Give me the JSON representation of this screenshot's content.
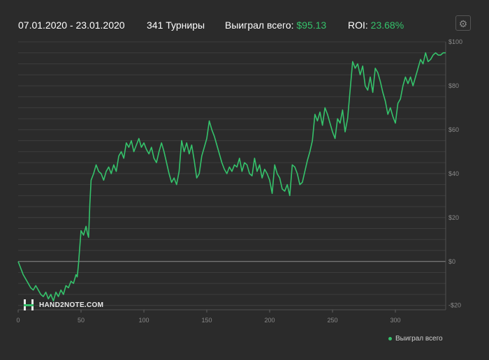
{
  "header": {
    "date_range": "07.01.2020 - 23.01.2020",
    "tournaments": "341 Турниры",
    "won_label": "Выиграл всего:",
    "won_value": "$95.13",
    "roi_label": "ROI:",
    "roi_value": "23.68%"
  },
  "settings_icon": "gear-icon",
  "watermark": {
    "text": "HAND2NOTE.COM"
  },
  "colors": {
    "line": "#35c26b",
    "background": "#2b2b2b",
    "grid": "#3c3c3c",
    "axis_text": "#8a8a8a"
  },
  "chart_data": {
    "type": "line",
    "title": "",
    "xlabel": "",
    "ylabel": "",
    "xlim": [
      0,
      340
    ],
    "ylim": [
      -22,
      100
    ],
    "x_ticks": [
      0,
      50,
      100,
      150,
      200,
      250,
      300
    ],
    "x_tick_labels": [
      "0",
      "50",
      "100",
      "150",
      "200",
      "250",
      "300"
    ],
    "y_ticks": [
      -20,
      0,
      20,
      40,
      60,
      80,
      100
    ],
    "y_tick_labels": [
      "-$20",
      "$0",
      "$20",
      "$40",
      "$60",
      "$80",
      "$100"
    ],
    "grid": true,
    "legend_position": "bottom-right",
    "series": [
      {
        "name": "Выиграл всего",
        "x": [
          0,
          2,
          4,
          6,
          8,
          10,
          12,
          14,
          16,
          18,
          20,
          22,
          24,
          26,
          28,
          30,
          32,
          34,
          36,
          38,
          40,
          42,
          44,
          46,
          47,
          48,
          50,
          52,
          54,
          55,
          56,
          57,
          58,
          60,
          62,
          64,
          66,
          68,
          70,
          72,
          74,
          76,
          78,
          80,
          82,
          84,
          86,
          88,
          90,
          92,
          94,
          96,
          98,
          100,
          102,
          104,
          106,
          108,
          110,
          112,
          114,
          116,
          118,
          120,
          122,
          124,
          126,
          128,
          130,
          132,
          134,
          136,
          138,
          140,
          142,
          144,
          146,
          148,
          150,
          152,
          154,
          156,
          158,
          160,
          162,
          164,
          166,
          168,
          170,
          172,
          174,
          176,
          178,
          180,
          182,
          184,
          186,
          188,
          190,
          192,
          194,
          196,
          198,
          200,
          202,
          204,
          206,
          208,
          210,
          212,
          214,
          216,
          218,
          220,
          222,
          224,
          226,
          228,
          230,
          232,
          234,
          236,
          238,
          240,
          242,
          244,
          246,
          248,
          250,
          252,
          254,
          256,
          258,
          260,
          262,
          264,
          266,
          268,
          270,
          272,
          274,
          276,
          278,
          280,
          282,
          284,
          286,
          288,
          290,
          292,
          294,
          296,
          298,
          300,
          302,
          304,
          306,
          308,
          310,
          312,
          314,
          316,
          318,
          320,
          322,
          324,
          326,
          328,
          330,
          332,
          334,
          336,
          338,
          340
        ],
        "values": [
          0,
          -3,
          -6,
          -8,
          -10,
          -12,
          -13,
          -11,
          -13,
          -15,
          -16,
          -14,
          -17,
          -15,
          -18,
          -14,
          -16,
          -13,
          -15,
          -11,
          -12,
          -9,
          -10,
          -6,
          -7,
          -1,
          14,
          12,
          16,
          13,
          11,
          26,
          37,
          40,
          44,
          41,
          40,
          37,
          41,
          43,
          40,
          44,
          41,
          48,
          50,
          47,
          54,
          52,
          55,
          50,
          53,
          56,
          52,
          54,
          51,
          49,
          52,
          47,
          45,
          50,
          54,
          50,
          45,
          40,
          36,
          38,
          35,
          41,
          55,
          50,
          54,
          49,
          53,
          46,
          38,
          40,
          48,
          52,
          56,
          64,
          60,
          57,
          53,
          49,
          45,
          42,
          40,
          43,
          41,
          44,
          43,
          47,
          41,
          45,
          44,
          40,
          39,
          47,
          41,
          44,
          38,
          42,
          40,
          37,
          31,
          44,
          40,
          38,
          33,
          32,
          35,
          30,
          44,
          43,
          40,
          35,
          36,
          41,
          46,
          50,
          55,
          67,
          64,
          68,
          62,
          70,
          67,
          63,
          59,
          56,
          65,
          63,
          69,
          59,
          65,
          78,
          91,
          88,
          90,
          85,
          89,
          80,
          78,
          84,
          77,
          88,
          86,
          82,
          77,
          73,
          67,
          70,
          66,
          63,
          72,
          74,
          80,
          84,
          81,
          84,
          80,
          84,
          88,
          92,
          90,
          95,
          91,
          92,
          94,
          95,
          94,
          94,
          95,
          95
        ]
      }
    ]
  },
  "legend": {
    "label": "Выиграл всего"
  }
}
